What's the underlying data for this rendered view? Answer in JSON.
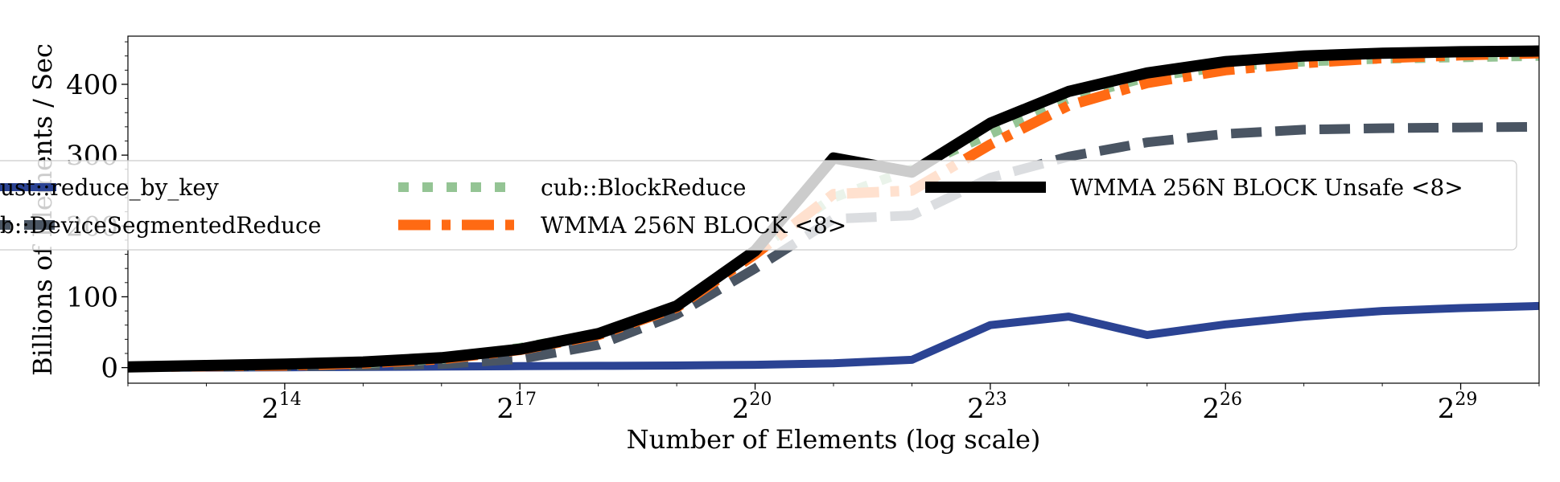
{
  "chart_data": {
    "type": "line",
    "xlabel": "Number of Elements (log scale)",
    "ylabel": "Billions of Elements / Sec",
    "x_scale": "log2",
    "x_tick_base": "2",
    "x_ticks": [
      14,
      17,
      20,
      23,
      26,
      29
    ],
    "x_tick_labels": [
      "14",
      "17",
      "20",
      "23",
      "26",
      29
    ],
    "y_ticks": [
      0,
      100,
      200,
      300,
      400
    ],
    "y_tick_labels": [
      "0",
      "100",
      "200",
      "300",
      "400"
    ],
    "xlim_exponent": [
      12,
      30
    ],
    "ylim": [
      -22,
      468
    ],
    "grid": false,
    "legend_position": "center",
    "legend_columns": 3,
    "x_exponents": [
      12,
      13,
      14,
      15,
      16,
      17,
      18,
      19,
      20,
      21,
      22,
      23,
      24,
      25,
      26,
      27,
      28,
      29,
      30
    ],
    "series": [
      {
        "name": "thrust::reduce_by_key",
        "legend_visible_text": "ust::reduce_by_key",
        "color": "#2b4393",
        "style": "solid",
        "values": [
          0,
          0,
          0.5,
          1,
          1.5,
          2,
          2.5,
          3,
          4,
          6,
          11,
          60,
          72,
          46,
          61,
          72,
          80,
          84,
          87
        ]
      },
      {
        "name": "cub::DeviceSegmentedReduce",
        "legend_visible_text": "b::DeviceSegmentedReduce",
        "color": "#4a5563",
        "style": "dashed",
        "values": [
          1,
          1.5,
          2,
          3,
          5,
          12,
          32,
          75,
          140,
          210,
          215,
          268,
          298,
          318,
          330,
          336,
          338,
          339,
          340
        ]
      },
      {
        "name": "cub::BlockReduce",
        "legend_visible_text": "cub::BlockReduce",
        "color": "#94c494",
        "style": "dotted",
        "values": [
          1,
          2,
          3,
          6,
          12,
          28,
          48,
          88,
          165,
          240,
          280,
          330,
          380,
          410,
          425,
          432,
          436,
          438,
          440
        ]
      },
      {
        "name": "WMMA 256N BLOCK <8>",
        "legend_visible_text": "WMMA 256N BLOCK <8>",
        "color": "#ff6a13",
        "style": "dashdot",
        "values": [
          1,
          2,
          3,
          6,
          12,
          25,
          46,
          85,
          160,
          245,
          250,
          315,
          370,
          402,
          420,
          430,
          437,
          441,
          444
        ]
      },
      {
        "name": "WMMA 256N BLOCK Unsafe <8>",
        "legend_visible_text": "WMMA 256N BLOCK Unsafe <8>",
        "color": "#000000",
        "style": "solid-thick",
        "values": [
          1,
          3,
          5,
          8,
          14,
          26,
          48,
          87,
          165,
          296,
          276,
          345,
          390,
          416,
          432,
          440,
          444,
          446,
          447
        ]
      }
    ]
  }
}
